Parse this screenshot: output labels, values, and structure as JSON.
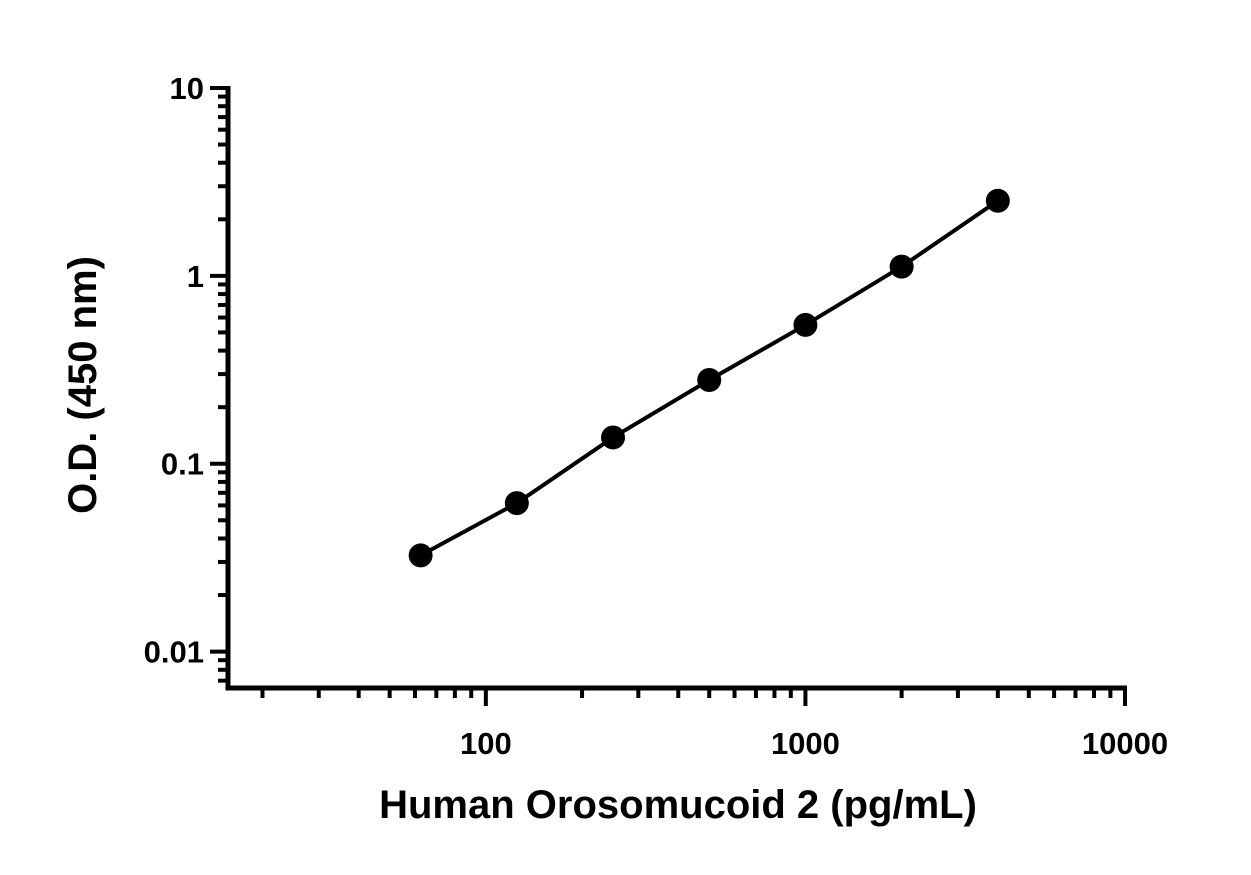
{
  "chart_data": {
    "type": "scatter",
    "x_label": "Human Orosomucoid 2 (pg/mL)",
    "y_label": "O.D. (450 nm)",
    "x": [
      62.5,
      125,
      250,
      500,
      1000,
      2000,
      4000
    ],
    "series": [
      {
        "color": "#000000",
        "values": [
          0.0325,
          0.0617,
          0.138,
          0.279,
          0.548,
          1.12,
          2.51
        ]
      }
    ],
    "xscale": "log",
    "yscale": "log",
    "xlim": [
      15.6,
      10000
    ],
    "ylim": [
      0.0064,
      10
    ],
    "xticks": [
      100,
      1000,
      10000
    ],
    "yticks": [
      0.01,
      0.1,
      1,
      10
    ],
    "connect": true,
    "minor_ticks": true
  }
}
